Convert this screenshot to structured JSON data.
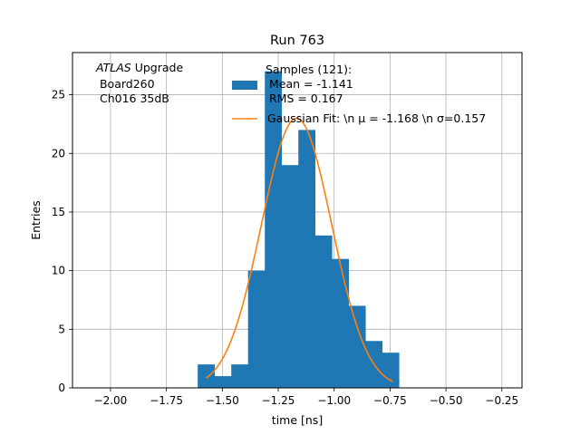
{
  "chart_data": {
    "type": "bar",
    "title": "Run 763",
    "xlabel": "time [ns]",
    "ylabel": "Entries",
    "xlim": [
      -2.17,
      -0.16
    ],
    "ylim": [
      0,
      28.6
    ],
    "grid": true,
    "x_ticks": [
      -2.0,
      -1.75,
      -1.5,
      -1.25,
      -1.0,
      -0.75,
      -0.5,
      -0.25
    ],
    "x_tick_labels": [
      "−2.00",
      "−1.75",
      "−1.50",
      "−1.25",
      "−1.00",
      "−0.75",
      "−0.50",
      "−0.25"
    ],
    "y_ticks": [
      0,
      5,
      10,
      15,
      20,
      25
    ],
    "y_tick_labels": [
      "0",
      "5",
      "10",
      "15",
      "20",
      "25"
    ],
    "histogram": {
      "name": "Samples (121):",
      "bin_edges": [
        -1.61,
        -1.535,
        -1.46,
        -1.385,
        -1.31,
        -1.235,
        -1.16,
        -1.085,
        -1.01,
        -0.935,
        -0.86,
        -0.785,
        -0.71
      ],
      "counts": [
        2,
        1,
        2,
        10,
        27,
        19,
        22,
        13,
        11,
        7,
        4,
        3
      ],
      "color": "#1f77b4"
    },
    "fit": {
      "name": "Gaussian Fit",
      "mu": -1.168,
      "sigma": 0.157,
      "amplitude": 23,
      "x_range": [
        -1.572,
        -0.738
      ],
      "color": "#ff7f0e"
    },
    "legend": {
      "position": "top-right",
      "entries": [
        {
          "lines": [
            "Samples (121):",
            " Mean = -1.141",
            " RMS = 0.167"
          ],
          "series": "histogram"
        },
        {
          "lines": [
            "Gaussian Fit: \\n μ = -1.168 \\n σ=0.157"
          ],
          "series": "fit"
        }
      ]
    },
    "annotation": {
      "italic": "ATLAS",
      "suffix": " Upgrade",
      "lines": [
        " Board260",
        " Ch016 35dB"
      ]
    }
  }
}
